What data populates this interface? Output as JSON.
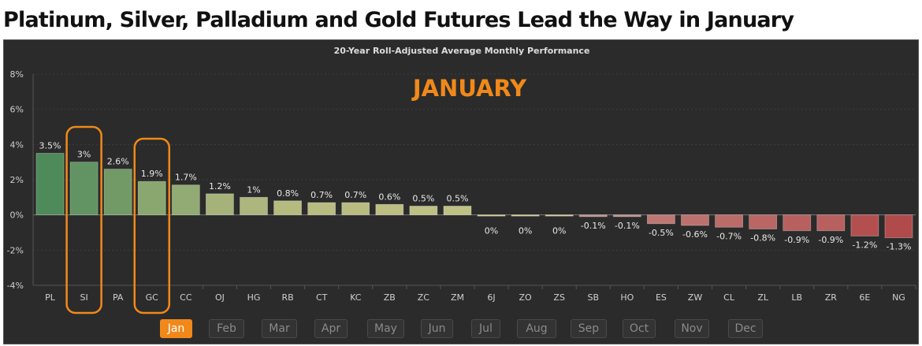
{
  "headline": "Platinum, Silver, Palladium and Gold Futures Lead the Way in January",
  "chart_data": {
    "type": "bar",
    "title": "20-Year Roll-Adjusted Average Monthly Performance",
    "annotation": "JANUARY",
    "categories": [
      "PL",
      "SI",
      "PA",
      "GC",
      "CC",
      "OJ",
      "HG",
      "RB",
      "CT",
      "KC",
      "ZB",
      "ZC",
      "ZM",
      "6J",
      "ZO",
      "ZS",
      "SB",
      "HO",
      "ES",
      "ZW",
      "CL",
      "ZL",
      "LB",
      "ZR",
      "6E",
      "NG"
    ],
    "values": [
      3.5,
      3,
      2.6,
      1.9,
      1.7,
      1.2,
      1,
      0.8,
      0.7,
      0.7,
      0.6,
      0.5,
      0.5,
      0,
      0,
      0,
      -0.1,
      -0.1,
      -0.5,
      -0.6,
      -0.7,
      -0.8,
      -0.9,
      -0.9,
      -1.2,
      -1.3
    ],
    "labels": [
      "3.5%",
      "3%",
      "2.6%",
      "1.9%",
      "1.7%",
      "1.2%",
      "1%",
      "0.8%",
      "0.7%",
      "0.7%",
      "0.6%",
      "0.5%",
      "0.5%",
      "0%",
      "0%",
      "0%",
      "-0.1%",
      "-0.1%",
      "-0.5%",
      "-0.6%",
      "-0.7%",
      "-0.8%",
      "-0.9%",
      "-0.9%",
      "-1.2%",
      "-1.3%"
    ],
    "y_ticks": [
      "8%",
      "6%",
      "4%",
      "2%",
      "0%",
      "-2%",
      "-4%"
    ],
    "ylim": [
      -4,
      8
    ],
    "highlighted": [
      "SI",
      "GC"
    ],
    "grid": true
  },
  "months": [
    "Jan",
    "Feb",
    "Mar",
    "Apr",
    "May",
    "Jun",
    "Jul",
    "Aug",
    "Sep",
    "Oct",
    "Nov",
    "Dec"
  ],
  "selected_month": "Jan",
  "colors": {
    "background": "#2b2b2b",
    "annotation": "#f0891a",
    "highlight_outline": "#f0891a",
    "positive_strong": "#4f8a5b",
    "positive_weak": "#d2c98a",
    "negative_weak": "#c7938e",
    "negative_strong": "#b14a4a"
  }
}
